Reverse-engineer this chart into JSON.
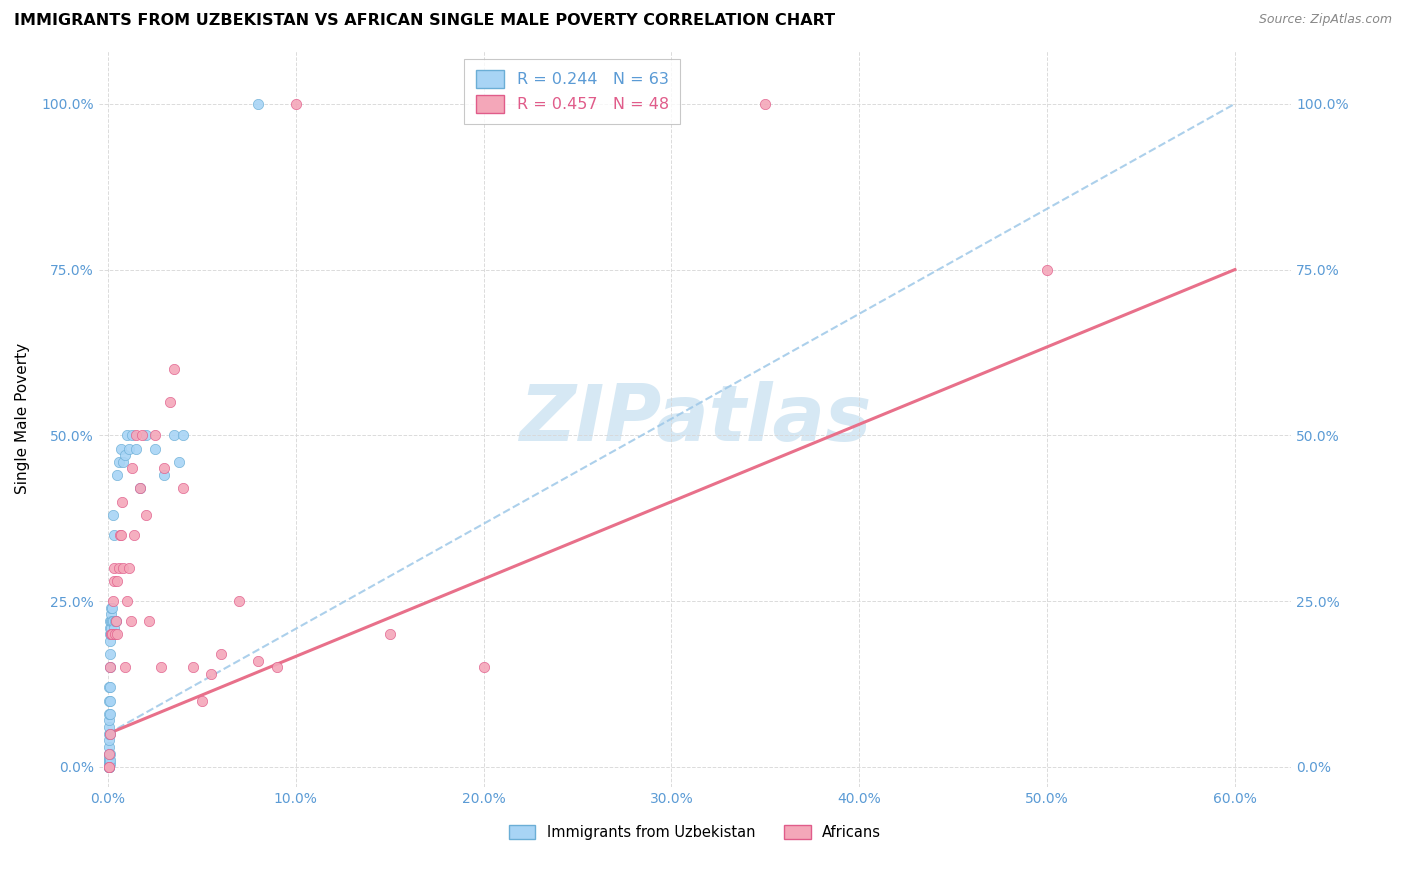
{
  "title": "IMMIGRANTS FROM UZBEKISTAN VS AFRICAN SINGLE MALE POVERTY CORRELATION CHART",
  "source": "Source: ZipAtlas.com",
  "ylabel_label": "Single Male Poverty",
  "xlim": [
    -0.5,
    63
  ],
  "ylim": [
    -3,
    108
  ],
  "xticks": [
    0,
    10,
    20,
    30,
    40,
    50,
    60
  ],
  "yticks": [
    0,
    25,
    50,
    75,
    100
  ],
  "color_blue": "#a8d4f5",
  "color_blue_edge": "#6baed6",
  "color_pink": "#f4a7b9",
  "color_pink_edge": "#e05c8a",
  "color_trendline_blue": "#9ec8e8",
  "color_trendline_pink": "#e8708a",
  "tick_color": "#5b9bd5",
  "watermark_color": "#c5dff0",
  "legend_label1": "Immigrants from Uzbekistan",
  "legend_label2": "Africans",
  "blue_x": [
    0.05,
    0.05,
    0.05,
    0.05,
    0.05,
    0.05,
    0.05,
    0.05,
    0.05,
    0.05,
    0.05,
    0.05,
    0.05,
    0.05,
    0.05,
    0.05,
    0.05,
    0.05,
    0.05,
    0.1,
    0.1,
    0.1,
    0.1,
    0.1,
    0.1,
    0.1,
    0.1,
    0.1,
    0.1,
    0.1,
    0.1,
    0.1,
    0.15,
    0.15,
    0.15,
    0.15,
    0.15,
    0.2,
    0.2,
    0.2,
    0.25,
    0.25,
    0.3,
    0.3,
    0.35,
    0.4,
    0.5,
    0.6,
    0.7,
    0.8,
    0.9,
    1.0,
    1.1,
    1.3,
    1.5,
    1.7,
    2.0,
    2.5,
    3.0,
    3.5,
    3.8,
    4.0,
    8.0
  ],
  "blue_y": [
    0.0,
    0.0,
    0.0,
    0.0,
    0.0,
    0.5,
    0.5,
    1.0,
    1.0,
    1.5,
    2.0,
    3.0,
    4.0,
    5.0,
    6.0,
    7.0,
    8.0,
    10.0,
    12.0,
    0.5,
    1.0,
    2.0,
    5.0,
    8.0,
    10.0,
    12.0,
    15.0,
    17.0,
    19.0,
    20.0,
    21.0,
    22.0,
    20.0,
    21.0,
    22.0,
    23.0,
    24.0,
    20.0,
    22.0,
    24.0,
    22.0,
    38.0,
    21.0,
    35.0,
    22.0,
    22.0,
    44.0,
    46.0,
    48.0,
    46.0,
    47.0,
    50.0,
    48.0,
    50.0,
    48.0,
    42.0,
    50.0,
    48.0,
    44.0,
    50.0,
    46.0,
    50.0,
    100.0
  ],
  "pink_x": [
    0.05,
    0.05,
    0.05,
    0.1,
    0.1,
    0.15,
    0.2,
    0.25,
    0.3,
    0.3,
    0.35,
    0.4,
    0.5,
    0.5,
    0.6,
    0.65,
    0.7,
    0.75,
    0.8,
    0.9,
    1.0,
    1.1,
    1.2,
    1.3,
    1.4,
    1.5,
    1.7,
    1.8,
    2.0,
    2.2,
    2.5,
    2.8,
    3.0,
    3.3,
    3.5,
    4.0,
    4.5,
    5.0,
    5.5,
    6.0,
    7.0,
    8.0,
    9.0,
    10.0,
    15.0,
    20.0,
    35.0,
    50.0
  ],
  "pink_y": [
    0.0,
    0.0,
    2.0,
    5.0,
    15.0,
    20.0,
    20.0,
    25.0,
    28.0,
    30.0,
    20.0,
    22.0,
    20.0,
    28.0,
    30.0,
    35.0,
    35.0,
    40.0,
    30.0,
    15.0,
    25.0,
    30.0,
    22.0,
    45.0,
    35.0,
    50.0,
    42.0,
    50.0,
    38.0,
    22.0,
    50.0,
    15.0,
    45.0,
    55.0,
    60.0,
    42.0,
    15.0,
    10.0,
    14.0,
    17.0,
    25.0,
    16.0,
    15.0,
    100.0,
    20.0,
    15.0,
    100.0,
    75.0
  ],
  "blue_trendline_x0": 0,
  "blue_trendline_y0": 5,
  "blue_trendline_x1": 60,
  "blue_trendline_y1": 100,
  "pink_trendline_x0": 0,
  "pink_trendline_y0": 5,
  "pink_trendline_x1": 60,
  "pink_trendline_y1": 75
}
